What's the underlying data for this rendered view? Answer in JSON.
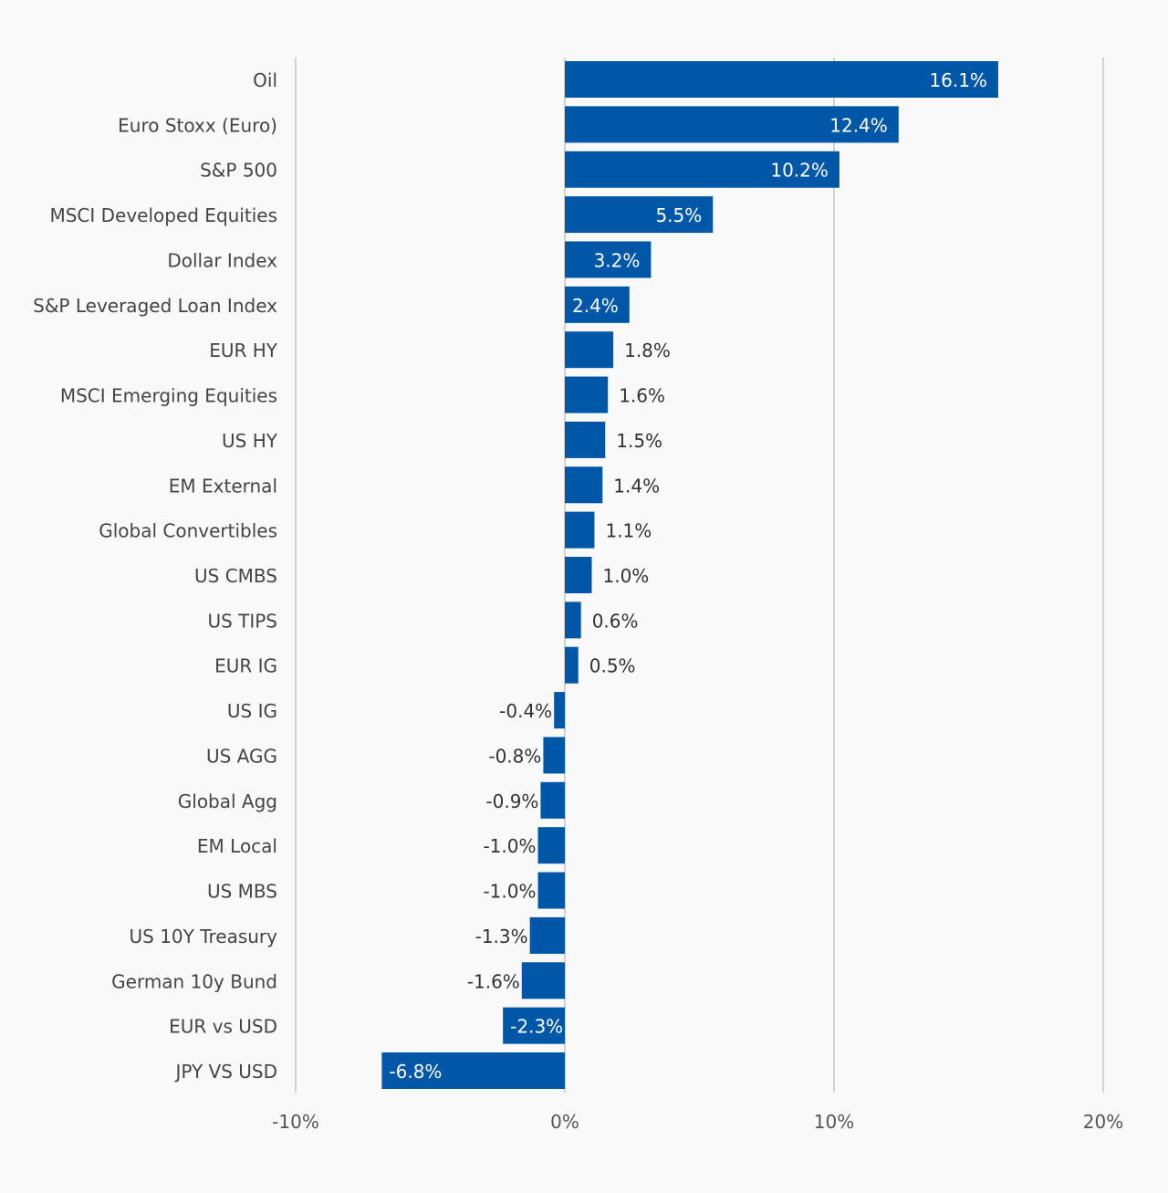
{
  "chart_data": {
    "type": "bar",
    "orientation": "horizontal",
    "categories": [
      "Oil",
      "Euro Stoxx (Euro)",
      "S&P 500",
      "MSCI Developed Equities",
      "Dollar Index",
      "S&P Leveraged Loan Index",
      "EUR HY",
      "MSCI Emerging Equities",
      "US HY",
      "EM External",
      "Global Convertibles",
      "US CMBS",
      "US TIPS",
      "EUR IG",
      "US IG",
      "US AGG",
      "Global Agg",
      "EM Local",
      "US MBS",
      "US 10Y Treasury",
      "German 10y Bund",
      "EUR vs USD",
      "JPY VS USD"
    ],
    "values": [
      16.1,
      12.4,
      10.2,
      5.5,
      3.2,
      2.4,
      1.8,
      1.6,
      1.5,
      1.4,
      1.1,
      1.0,
      0.6,
      0.5,
      -0.4,
      -0.8,
      -0.9,
      -1.0,
      -1.0,
      -1.3,
      -1.6,
      -2.3,
      -6.8
    ],
    "data_labels": [
      "16.1%",
      "12.4%",
      "10.2%",
      "5.5%",
      "3.2%",
      "2.4%",
      "1.8%",
      "1.6%",
      "1.5%",
      "1.4%",
      "1.1%",
      "1.0%",
      "0.6%",
      "0.5%",
      "-0.4%",
      "-0.8%",
      "-0.9%",
      "-1.0%",
      "-1.0%",
      "-1.3%",
      "-1.6%",
      "-2.3%",
      "-6.8%"
    ],
    "xlim": [
      -10,
      20
    ],
    "x_ticks": [
      -10,
      0,
      10,
      20
    ],
    "x_tick_labels": [
      "-10%",
      "0%",
      "10%",
      "20%"
    ],
    "grid": "vertical",
    "bar_color": "#0057a8",
    "background": "#f9f9f9"
  }
}
